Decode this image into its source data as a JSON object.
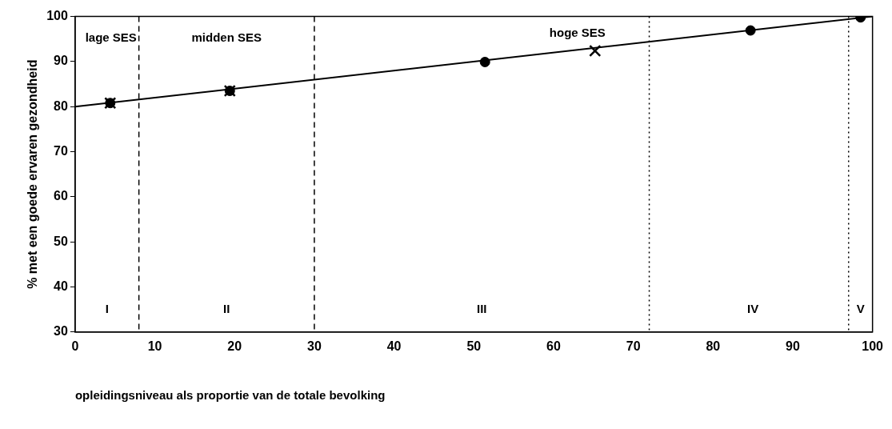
{
  "chart_data": {
    "type": "scatter",
    "xlabel": "opleidingsniveau als proportie van de totale bevolking",
    "ylabel": "% met een goede ervaren gezondheid",
    "xlim": [
      0,
      100
    ],
    "xticks": [
      0,
      10,
      20,
      30,
      40,
      50,
      60,
      70,
      80,
      90,
      100
    ],
    "ylim": [
      30,
      100
    ],
    "yticks": [
      30,
      40,
      50,
      60,
      70,
      80,
      90,
      100
    ],
    "grid": false,
    "legend": false,
    "series": [
      {
        "type": "line",
        "color": "#000000",
        "x": [
          0,
          100
        ],
        "values": [
          80,
          100
        ],
        "marker": "none",
        "line_style": "solid"
      },
      {
        "color": "#000000",
        "x": [
          4.4,
          19.4,
          51.4,
          84.7,
          98.5
        ],
        "values": [
          80.8,
          83.5,
          89.9,
          96.9,
          99.8
        ],
        "marker": "circle"
      },
      {
        "color": "#000000",
        "x": [
          4.4,
          19.4,
          65.2
        ],
        "values": [
          80.8,
          83.5,
          92.4
        ],
        "marker": "cross"
      }
    ],
    "ref_lines": [
      {
        "axis": "x",
        "value": 8,
        "line_style": "dashed"
      },
      {
        "axis": "x",
        "value": 30,
        "line_style": "dashed"
      },
      {
        "axis": "x",
        "value": 72,
        "line_style": "dotted"
      },
      {
        "axis": "x",
        "value": 97,
        "line_style": "dotted"
      }
    ],
    "annotations": [
      "lage SES",
      "midden SES",
      "hoge SES",
      "I",
      "II",
      "III",
      "IV",
      "V"
    ]
  }
}
